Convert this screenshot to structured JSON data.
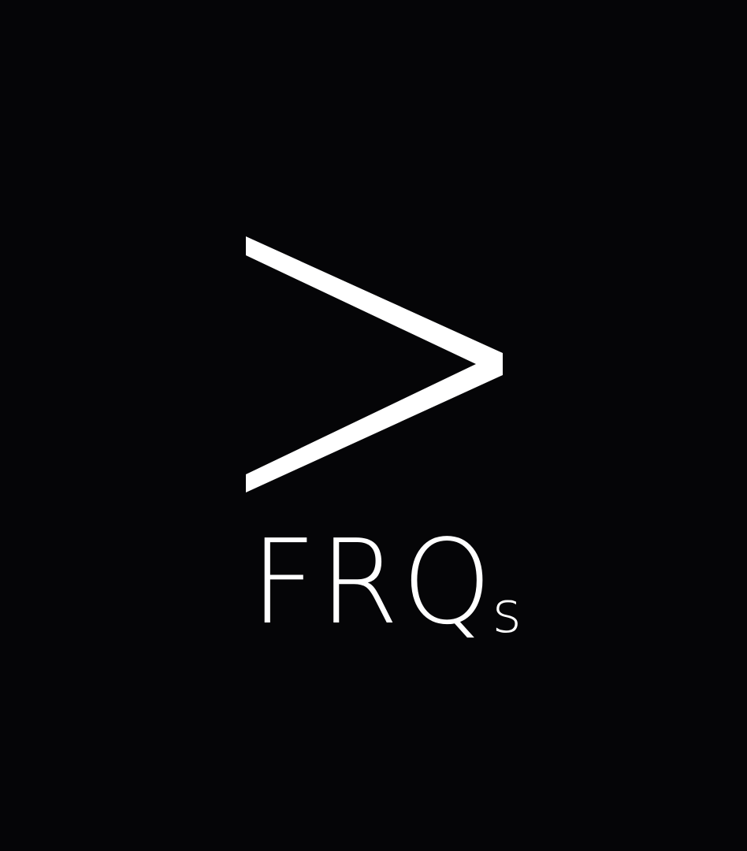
{
  "logo": {
    "icon": "chevron-right-icon",
    "text_main": "FRQ",
    "text_sub": "s",
    "colors": {
      "background": "#050507",
      "foreground": "#ffffff"
    }
  }
}
